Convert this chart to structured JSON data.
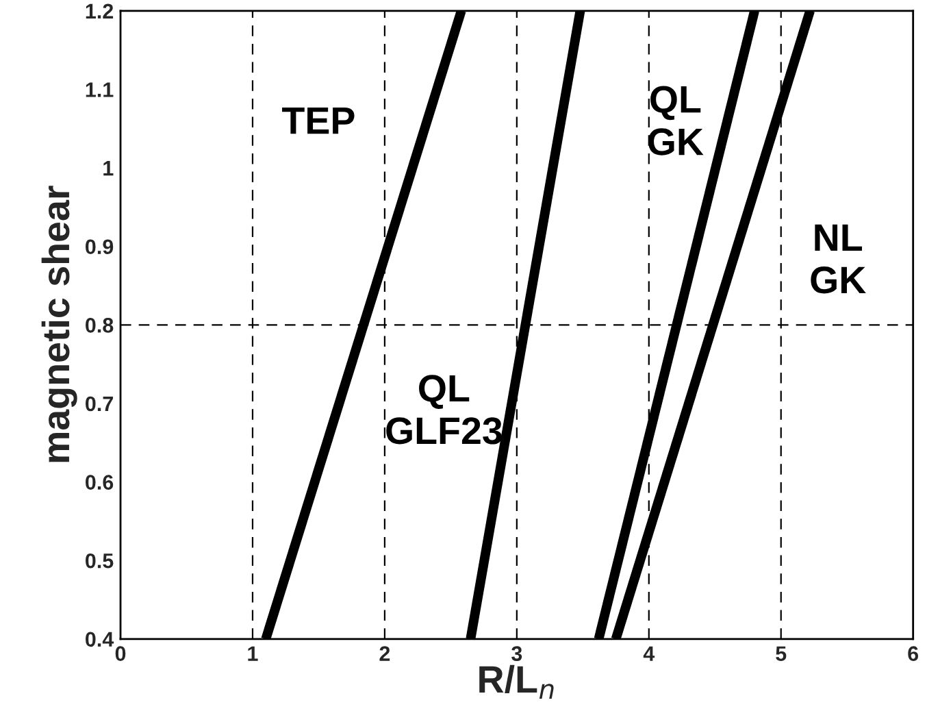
{
  "chart_data": {
    "type": "line",
    "xlabel": "R/L$_{n}$",
    "ylabel": "magnetic shear",
    "xlim": [
      0,
      6
    ],
    "xticks": [
      0,
      1,
      2,
      3,
      4,
      5,
      6
    ],
    "ylim": [
      0.4,
      1.2
    ],
    "yticks": [
      0.4,
      0.5,
      0.6,
      0.7,
      0.8,
      0.9,
      1,
      1.1,
      1.2
    ],
    "series": [
      {
        "color": "#000000",
        "x": [
          1.1,
          2.58
        ],
        "values": [
          0.4,
          1.2
        ]
      },
      {
        "color": "#000000",
        "x": [
          2.65,
          3.48
        ],
        "values": [
          0.4,
          1.2
        ]
      },
      {
        "color": "#000000",
        "x": [
          3.62,
          4.8
        ],
        "values": [
          0.4,
          1.2
        ]
      },
      {
        "color": "#000000",
        "x": [
          3.75,
          5.22
        ],
        "values": [
          0.4,
          1.2
        ]
      }
    ],
    "ref_lines": [
      {
        "axis": "x",
        "value": 1,
        "color": "#000000",
        "line_style": "dashed"
      },
      {
        "axis": "x",
        "value": 2,
        "color": "#000000",
        "line_style": "dashed"
      },
      {
        "axis": "x",
        "value": 3,
        "color": "#000000",
        "line_style": "dashed"
      },
      {
        "axis": "x",
        "value": 4,
        "color": "#000000",
        "line_style": "dashed"
      },
      {
        "axis": "x",
        "value": 5,
        "color": "#000000",
        "line_style": "dashed"
      },
      {
        "axis": "y",
        "value": 0.8,
        "color": "#000000",
        "line_style": "dashed"
      }
    ],
    "annotations": [
      "TEP",
      "QL\nGLF23",
      "QL\nGK",
      "NL\nGK"
    ],
    "grid": false,
    "legend": false
  }
}
